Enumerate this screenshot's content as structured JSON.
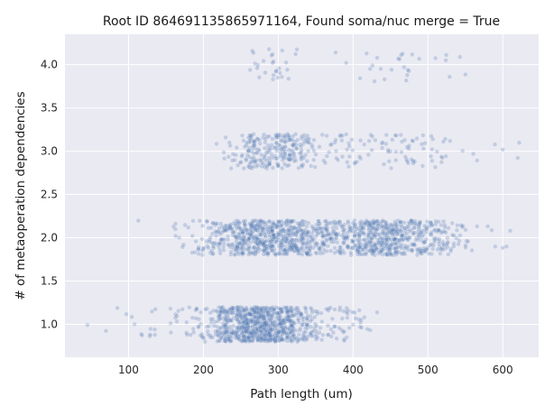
{
  "chart_data": {
    "type": "scatter",
    "title": "Root ID 864691135865971164, Found soma/nuc merge = True",
    "xlabel": "Path length (um)",
    "ylabel": "# of metaoperation dependencies",
    "xlim": [
      15,
      648
    ],
    "ylim": [
      0.62,
      4.35
    ],
    "xticks": [
      100,
      200,
      300,
      400,
      500,
      600
    ],
    "yticks": [
      1.0,
      1.5,
      2.0,
      2.5,
      3.0,
      3.5,
      4.0
    ],
    "xtick_labels": [
      "100",
      "200",
      "300",
      "400",
      "500",
      "600"
    ],
    "ytick_labels": [
      "1.0",
      "1.5",
      "2.0",
      "2.5",
      "3.0",
      "3.5",
      "4.0"
    ],
    "grid": true,
    "jitter": 0.2,
    "point_color": "#4c72b0",
    "point_alpha": 0.25,
    "background": "#eaeaf2",
    "series": [
      {
        "y": 1,
        "n": 900,
        "clusters": [
          {
            "center": 275,
            "spread": 38,
            "weight": 0.93
          },
          {
            "center": 160,
            "spread": 30,
            "weight": 0.03
          },
          {
            "center": 385,
            "spread": 18,
            "weight": 0.04
          }
        ],
        "extra_x": [
          45,
          85,
          97,
          108,
          118,
          135,
          400,
          410
        ]
      },
      {
        "y": 2,
        "n": 1250,
        "clusters": [
          {
            "center": 290,
            "spread": 48,
            "weight": 0.55
          },
          {
            "center": 440,
            "spread": 38,
            "weight": 0.4
          },
          {
            "center": 520,
            "spread": 18,
            "weight": 0.05
          }
        ],
        "extra_x": [
          113,
          160,
          185,
          190,
          580,
          590,
          600,
          605,
          610
        ]
      },
      {
        "y": 3,
        "n": 330,
        "clusters": [
          {
            "center": 295,
            "spread": 30,
            "weight": 0.72
          },
          {
            "center": 450,
            "spread": 50,
            "weight": 0.28
          }
        ],
        "extra_x": [
          370,
          385,
          395,
          405,
          410,
          600,
          620,
          622
        ]
      },
      {
        "y": 4,
        "n": 55,
        "clusters": [
          {
            "center": 290,
            "spread": 15,
            "weight": 0.5
          },
          {
            "center": 480,
            "spread": 38,
            "weight": 0.5
          }
        ],
        "extra_x": []
      }
    ]
  }
}
